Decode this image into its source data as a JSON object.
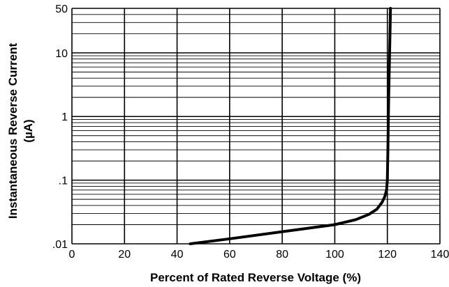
{
  "chart_data": {
    "type": "line",
    "title": "",
    "xlabel": "Percent of Rated Reverse Voltage (%)",
    "ylabel_line1": "Instantaneous Reverse Current",
    "ylabel_line2": "(µA)",
    "x_scale": "linear",
    "y_scale": "log",
    "xlim": [
      0,
      140
    ],
    "ylim": [
      0.01,
      50
    ],
    "grid": true,
    "legend": "none",
    "x_ticks": [
      {
        "value": 0,
        "label": "0"
      },
      {
        "value": 20,
        "label": "20"
      },
      {
        "value": 40,
        "label": "40"
      },
      {
        "value": 60,
        "label": "60"
      },
      {
        "value": 80,
        "label": "80"
      },
      {
        "value": 100,
        "label": "100"
      },
      {
        "value": 120,
        "label": "120"
      },
      {
        "value": 140,
        "label": "140"
      }
    ],
    "y_ticks": [
      {
        "value": 0.01,
        "label": ".01"
      },
      {
        "value": 0.1,
        "label": ".1"
      },
      {
        "value": 1,
        "label": "1"
      },
      {
        "value": 10,
        "label": "10"
      },
      {
        "value": 50,
        "label": "50"
      }
    ],
    "series": [
      {
        "color": "#000000",
        "x": [
          45,
          60,
          80,
          100,
          108,
          113,
          116,
          118,
          119,
          119.7,
          120,
          120.2,
          120.5,
          121,
          121.2
        ],
        "y": [
          0.01,
          0.012,
          0.0155,
          0.02,
          0.024,
          0.029,
          0.035,
          0.045,
          0.055,
          0.07,
          0.1,
          0.3,
          2,
          20,
          50
        ]
      }
    ]
  }
}
